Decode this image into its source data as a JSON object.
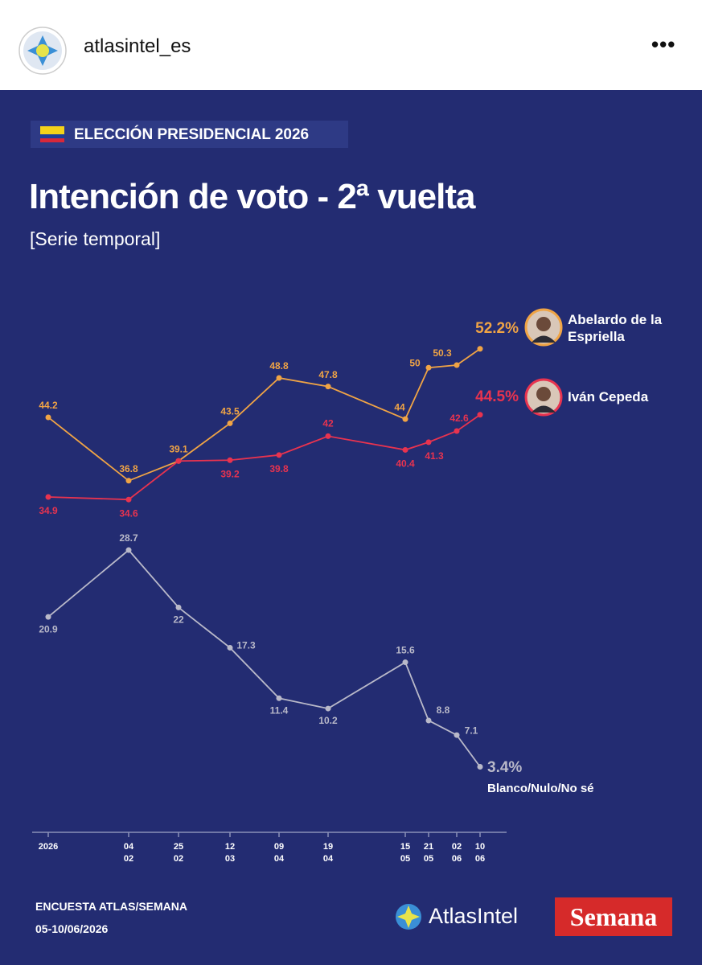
{
  "header": {
    "account": "atlasintel_es"
  },
  "badge": "ELECCIÓN PRESIDENCIAL 2026",
  "chart_data": {
    "type": "line",
    "title": "Intención de voto - 2ª vuelta",
    "subtitle": "[Serie temporal]",
    "categories": [
      "2026",
      "04\n02",
      "25\n02",
      "12\n03",
      "09\n04",
      "19\n04",
      "15\n05",
      "21\n05",
      "02\n06",
      "10\n06"
    ],
    "series": [
      {
        "name": "Abelardo de la Espriella",
        "color": "#f0a445",
        "values": [
          44.2,
          36.8,
          39.1,
          43.5,
          48.8,
          47.8,
          44,
          50,
          50.3,
          52.2
        ],
        "value_labels": [
          "44.2",
          "36.8",
          "39.1",
          "43.5",
          "48.8",
          "47.8",
          "44",
          "50",
          "50.3",
          "52.2%"
        ]
      },
      {
        "name": "Iván Cepeda",
        "color": "#e8334f",
        "values": [
          34.9,
          34.6,
          39.1,
          39.2,
          39.8,
          42,
          40.4,
          41.3,
          42.6,
          44.5
        ],
        "value_labels": [
          "34.9",
          "34.6",
          null,
          "39.2",
          "39.8",
          "42",
          "40.4",
          "41.3",
          "42.6",
          "44.5%"
        ]
      },
      {
        "name": "Blanco/Nulo/No sé",
        "color": "#b9b9c9",
        "values": [
          20.9,
          28.7,
          22,
          17.3,
          11.4,
          10.2,
          15.6,
          8.8,
          7.1,
          3.4
        ],
        "value_labels": [
          "20.9",
          "28.7",
          "22",
          "17.3",
          "11.4",
          "10.2",
          "15.6",
          "8.8",
          "7.1",
          "3.4%"
        ]
      }
    ]
  },
  "footer": {
    "source": "ENCUESTA ATLAS/SEMANA",
    "dates": "05-10/06/2026",
    "logo_atlas": "AtlasIntel",
    "logo_semana": "Semana"
  }
}
